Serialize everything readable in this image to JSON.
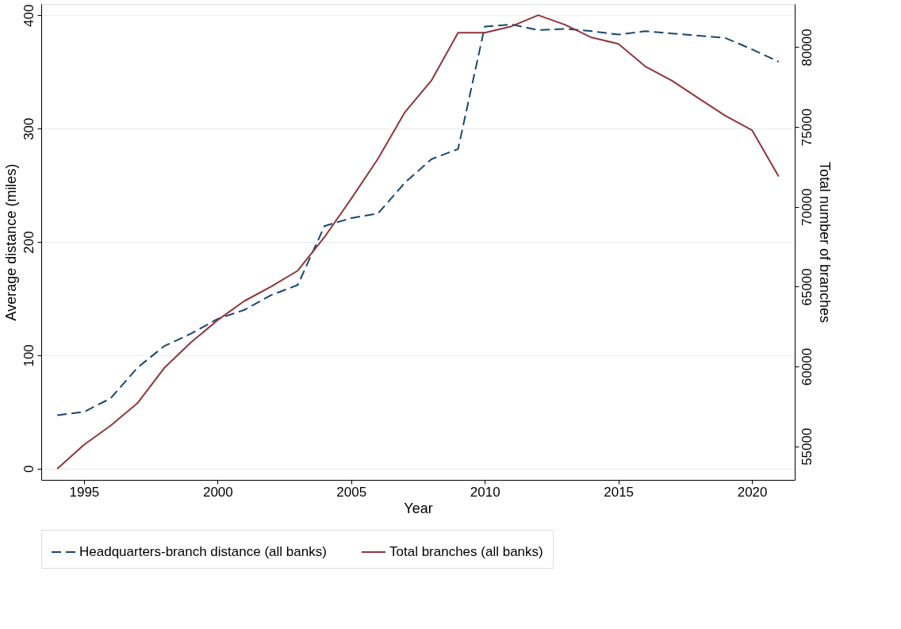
{
  "chart_data": {
    "type": "line",
    "xlabel": "Year",
    "ylabel": "Average distance (miles)",
    "y2label": "Total number of branches",
    "x": [
      1994,
      1995,
      1996,
      1997,
      1998,
      1999,
      2000,
      2001,
      2002,
      2003,
      2004,
      2005,
      2006,
      2007,
      2008,
      2009,
      2010,
      2011,
      2012,
      2013,
      2014,
      2015,
      2016,
      2017,
      2018,
      2019,
      2020,
      2021
    ],
    "xlim": [
      1993.4,
      2021.6
    ],
    "xticks": [
      1995,
      2000,
      2005,
      2010,
      2015,
      2020
    ],
    "ylim": [
      -10,
      410
    ],
    "yticks": [
      0,
      100,
      200,
      300,
      400
    ],
    "y2lim": [
      52900,
      82700
    ],
    "y2ticks": [
      55000,
      60000,
      65000,
      70000,
      75000,
      80000
    ],
    "grid": "y",
    "legend": "bottom",
    "series": [
      {
        "name": "Headquarters-branch distance (all banks)",
        "color": "#1a476f",
        "line_style": "dashed",
        "values": [
          47,
          50,
          62,
          89,
          108,
          119,
          132,
          140,
          153,
          162,
          214,
          221,
          225,
          252,
          273,
          282,
          390,
          392,
          387,
          388,
          386,
          383,
          386,
          384,
          382,
          380,
          370,
          359
        ]
      },
      {
        "name": "Total branches (all banks)",
        "color": "#90353b",
        "line_style": "solid",
        "axis": "y2",
        "values": [
          53600,
          55100,
          56300,
          57700,
          59900,
          61500,
          62900,
          64100,
          65000,
          66000,
          68100,
          70500,
          73000,
          75900,
          77900,
          80900,
          80900,
          81300,
          82000,
          81400,
          80600,
          80200,
          78800,
          77900,
          76800,
          75700,
          74800,
          71900
        ]
      }
    ]
  }
}
